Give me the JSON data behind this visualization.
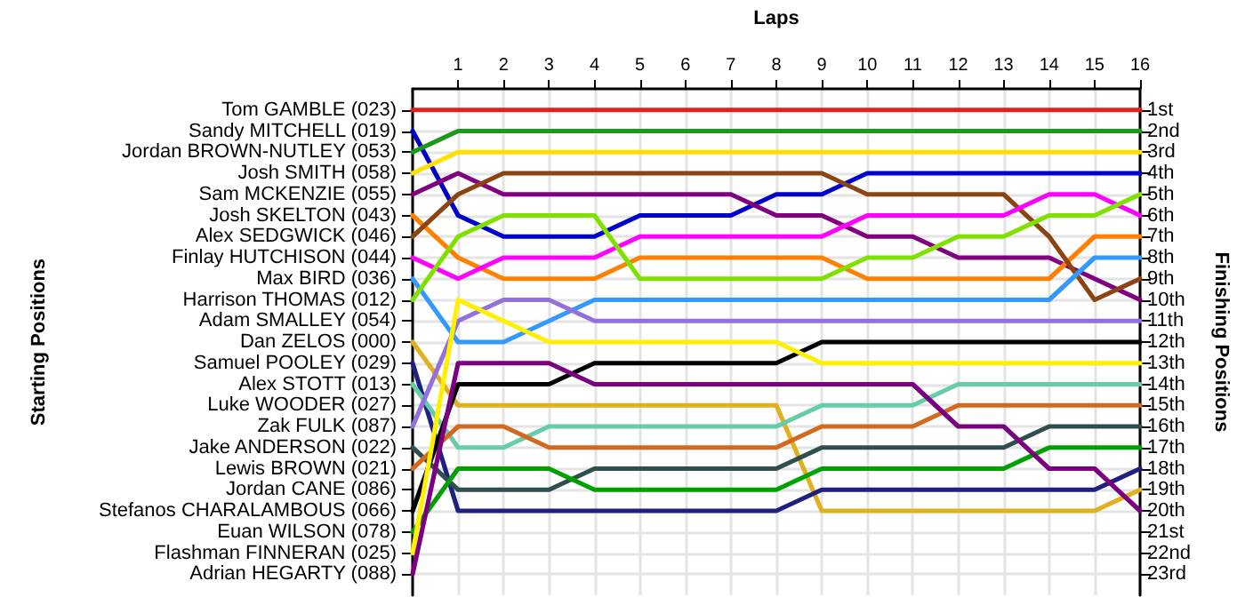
{
  "chart_data": {
    "type": "line",
    "xlabel": "Laps",
    "y2label": "Finishing Positions",
    "x": [
      0,
      1,
      2,
      3,
      4,
      5,
      6,
      7,
      8,
      9,
      10,
      11,
      12,
      13,
      14,
      15,
      16
    ],
    "xlim": [
      0,
      16
    ],
    "xticks": [
      1,
      2,
      3,
      4,
      5,
      6,
      7,
      8,
      9,
      10,
      11,
      12,
      13,
      14,
      15,
      16
    ],
    "y2lim": [
      24,
      0
    ],
    "y2ticks": [
      {
        "value": 1,
        "label": "1st"
      },
      {
        "value": 2,
        "label": "2nd"
      },
      {
        "value": 3,
        "label": "3rd"
      },
      {
        "value": 4,
        "label": "4th"
      },
      {
        "value": 5,
        "label": "5th"
      },
      {
        "value": 6,
        "label": "6th"
      },
      {
        "value": 7,
        "label": "7th"
      },
      {
        "value": 8,
        "label": "8th"
      },
      {
        "value": 9,
        "label": "9th"
      },
      {
        "value": 10,
        "label": "10th"
      },
      {
        "value": 11,
        "label": "11th"
      },
      {
        "value": 12,
        "label": "12th"
      },
      {
        "value": 13,
        "label": "13th"
      },
      {
        "value": 14,
        "label": "14th"
      },
      {
        "value": 15,
        "label": "15th"
      },
      {
        "value": 16,
        "label": "16th"
      },
      {
        "value": 17,
        "label": "17th"
      },
      {
        "value": 18,
        "label": "18th"
      },
      {
        "value": 19,
        "label": "19th"
      },
      {
        "value": 20,
        "label": "20th"
      },
      {
        "value": 21,
        "label": "21st"
      },
      {
        "value": 22,
        "label": "22nd"
      },
      {
        "value": 23,
        "label": "23rd"
      }
    ],
    "annotations": [
      {
        "text": "Starting Positions"
      },
      "Tom GAMBLE (023)",
      "Sandy MITCHELL (019)",
      "Jordan BROWN-NUTLEY (053)",
      "Josh SMITH (058)",
      "Sam MCKENZIE (055)",
      "Josh SKELTON (043)",
      "Alex SEDGWICK (046)",
      "Finlay HUTCHISON (044)",
      "Max BIRD (036)",
      "Harrison THOMAS (012)",
      "Adam SMALLEY (054)",
      "Dan ZELOS (000)",
      "Samuel POOLEY (029)",
      "Alex STOTT (013)",
      "Luke WOODER (027)",
      "Zak FULK (087)",
      "Jake ANDERSON (022)",
      "Lewis BROWN (021)",
      "Jordan CANE (086)",
      "Stefanos CHARALAMBOUS (066)",
      "Euan WILSON (078)",
      "Flashman FINNERAN (025)",
      "Adrian HEGARTY (088)"
    ],
    "grid": true,
    "marker": "none",
    "line_style": "solid",
    "series": [
      {
        "axis": "y2",
        "color": "#e02020",
        "values": [
          1,
          1,
          1,
          1,
          1,
          1,
          1,
          1,
          1,
          1,
          1,
          1,
          1,
          1,
          1,
          1,
          1
        ]
      },
      {
        "axis": "y2",
        "color": "#0000cc",
        "values": [
          2,
          6,
          7,
          7,
          7,
          6,
          6,
          6,
          5,
          5,
          4,
          4,
          4,
          4,
          4,
          4,
          4
        ]
      },
      {
        "axis": "y2",
        "color": "#1a9a1a",
        "values": [
          3,
          2,
          2,
          2,
          2,
          2,
          2,
          2,
          2,
          2,
          2,
          2,
          2,
          2,
          2,
          2,
          2
        ]
      },
      {
        "axis": "y2",
        "color": "#ffe000",
        "values": [
          4,
          3,
          3,
          3,
          3,
          3,
          3,
          3,
          3,
          3,
          3,
          3,
          3,
          3,
          3,
          3,
          3
        ]
      },
      {
        "axis": "y2",
        "color": "#800080",
        "values": [
          5,
          4,
          5,
          5,
          5,
          5,
          5,
          5,
          6,
          6,
          7,
          7,
          8,
          8,
          8,
          9,
          10
        ]
      },
      {
        "axis": "y2",
        "color": "#ff8000",
        "values": [
          6,
          8,
          9,
          9,
          9,
          8,
          8,
          8,
          8,
          8,
          9,
          9,
          9,
          9,
          9,
          7,
          7
        ]
      },
      {
        "axis": "y2",
        "color": "#8b4513",
        "values": [
          7,
          5,
          4,
          4,
          4,
          4,
          4,
          4,
          4,
          4,
          5,
          5,
          5,
          5,
          7,
          10,
          9
        ]
      },
      {
        "axis": "y2",
        "color": "#ff00ff",
        "values": [
          8,
          9,
          8,
          8,
          8,
          7,
          7,
          7,
          7,
          7,
          6,
          6,
          6,
          6,
          5,
          5,
          6
        ]
      },
      {
        "axis": "y2",
        "color": "#3399ff",
        "values": [
          9,
          12,
          12,
          11,
          10,
          10,
          10,
          10,
          10,
          10,
          10,
          10,
          10,
          10,
          10,
          8,
          8
        ]
      },
      {
        "axis": "y2",
        "color": "#80e000",
        "values": [
          10,
          7,
          6,
          6,
          6,
          9,
          9,
          9,
          9,
          9,
          8,
          8,
          7,
          7,
          6,
          6,
          5
        ]
      },
      {
        "axis": "y2",
        "color": "#e0b020",
        "values": [
          12,
          15,
          15,
          15,
          15,
          15,
          15,
          15,
          15,
          20,
          20,
          20,
          20,
          20,
          20,
          20,
          19
        ]
      },
      {
        "axis": "y2",
        "color": "#202080",
        "values": [
          13,
          20,
          20,
          20,
          20,
          20,
          20,
          20,
          20,
          19,
          19,
          19,
          19,
          19,
          19,
          19,
          18
        ]
      },
      {
        "axis": "y2",
        "color": "#66ccaa",
        "values": [
          14,
          17,
          17,
          16,
          16,
          16,
          16,
          16,
          16,
          15,
          15,
          15,
          14,
          14,
          14,
          14,
          14
        ]
      },
      {
        "axis": "y2",
        "color": "#9370db",
        "values": [
          16,
          11,
          10,
          10,
          11,
          11,
          11,
          11,
          11,
          11,
          11,
          11,
          11,
          11,
          11,
          11,
          11
        ]
      },
      {
        "axis": "y2",
        "color": "#2f4f4f",
        "values": [
          17,
          19,
          19,
          19,
          18,
          18,
          18,
          18,
          18,
          17,
          17,
          17,
          17,
          17,
          16,
          16,
          16
        ]
      },
      {
        "axis": "y2",
        "color": "#d2691e",
        "values": [
          18,
          16,
          16,
          17,
          17,
          17,
          17,
          17,
          17,
          16,
          16,
          16,
          15,
          15,
          15,
          15,
          15
        ]
      },
      {
        "axis": "y2",
        "color": "#000000",
        "values": [
          20,
          14,
          14,
          14,
          13,
          13,
          13,
          13,
          13,
          12,
          12,
          12,
          12,
          12,
          12,
          12,
          12
        ]
      },
      {
        "axis": "y2",
        "color": "#00a000",
        "values": [
          21,
          18,
          18,
          18,
          19,
          19,
          19,
          19,
          19,
          18,
          18,
          18,
          18,
          18,
          17,
          17,
          17
        ]
      },
      {
        "axis": "y2",
        "color": "#fff000",
        "values": [
          22,
          10,
          11,
          12,
          12,
          12,
          12,
          12,
          12,
          13,
          13,
          13,
          13,
          13,
          13,
          13,
          13
        ]
      },
      {
        "axis": "y2",
        "color": "#7a0080",
        "values": [
          23,
          13,
          13,
          13,
          14,
          14,
          14,
          14,
          14,
          14,
          14,
          14,
          16,
          16,
          18,
          18,
          20
        ]
      }
    ]
  }
}
